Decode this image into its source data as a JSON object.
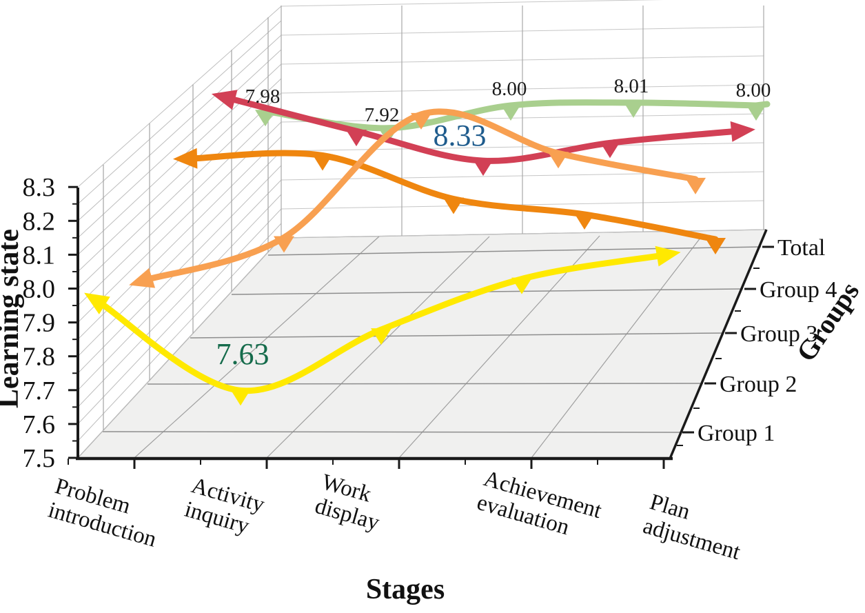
{
  "chart_data": {
    "type": "line",
    "projection": "3d",
    "title": "",
    "xlabel": "Stages",
    "ylabel": "Learning state",
    "zlabel": "Groups",
    "categories": [
      "Problem introduction",
      "Activity inquiry",
      "Work display",
      "Achievement evaluation",
      "Plan adjustment"
    ],
    "series": [
      {
        "name": "Group 1",
        "color": "#ffe900",
        "values": [
          7.89,
          7.63,
          7.81,
          7.96,
          8.03
        ]
      },
      {
        "name": "Group 2",
        "color": "#f8a051",
        "values": [
          7.82,
          7.95,
          8.33,
          8.21,
          8.13
        ]
      },
      {
        "name": "Group 3",
        "color": "#ef860f",
        "values": [
          8.06,
          8.07,
          7.93,
          7.88,
          7.8
        ]
      },
      {
        "name": "Group 4",
        "color": "#d24055",
        "values": [
          8.14,
          8.03,
          7.93,
          7.99,
          8.03
        ]
      },
      {
        "name": "Total",
        "color": "#a9cf8e",
        "values": [
          7.98,
          7.92,
          8.0,
          8.01,
          8.0
        ]
      }
    ],
    "ylim": [
      7.5,
      8.3
    ],
    "y_ticks": [
      "7.5",
      "7.6",
      "7.7",
      "7.8",
      "7.9",
      "8.0",
      "8.1",
      "8.2",
      "8.3"
    ],
    "z_ticks": [
      "Group 1",
      "Group 2",
      "Group 3",
      "Group 4",
      "Total"
    ],
    "grid": true,
    "legend_position": "none",
    "annotations": [
      {
        "id": "total-s1",
        "text": "7.98",
        "color": "#1a1a1a"
      },
      {
        "id": "total-s2",
        "text": "7.92",
        "color": "#1a1a1a"
      },
      {
        "id": "total-s3",
        "text": "8.00",
        "color": "#1a1a1a"
      },
      {
        "id": "total-s4",
        "text": "8.01",
        "color": "#1a1a1a"
      },
      {
        "id": "total-s5",
        "text": "8.00",
        "color": "#1a1a1a"
      },
      {
        "id": "g2-peak",
        "text": "8.33",
        "color": "#1f5c8d"
      },
      {
        "id": "g1-dip",
        "text": "7.63",
        "color": "#156b4b"
      }
    ]
  }
}
